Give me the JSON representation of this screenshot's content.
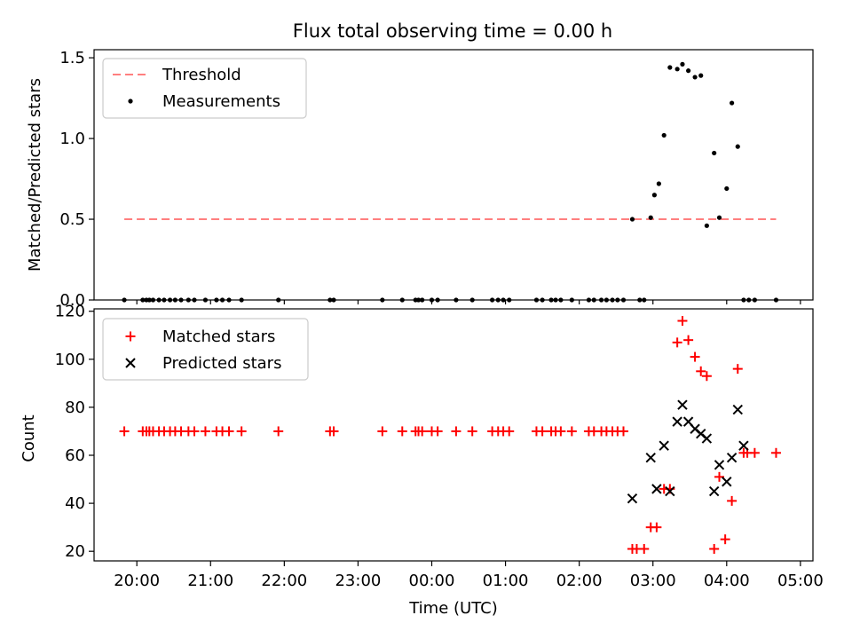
{
  "title": "Flux total observing time = 0.00 h",
  "colors": {
    "threshold": "#ff7f7f",
    "measurements": "#000000",
    "matched": "#ff0000",
    "predicted": "#000000"
  },
  "chart_data": [
    {
      "type": "scatter",
      "ylabel": "Matched/Predicted stars",
      "xlim": [
        19.42,
        29.17
      ],
      "ylim": [
        0,
        1.55
      ],
      "yticks": [
        0.0,
        0.5,
        1.0,
        1.5
      ],
      "ytick_labels": [
        "0.0",
        "0.5",
        "1.0",
        "1.5"
      ],
      "legend_position": "upper left",
      "threshold": {
        "name": "Threshold",
        "value": 0.5,
        "x": [
          19.83,
          28.67
        ]
      },
      "series": [
        {
          "name": "Measurements",
          "x": [
            19.83,
            20.08,
            20.13,
            20.17,
            20.22,
            20.3,
            20.37,
            20.45,
            20.52,
            20.6,
            20.7,
            20.78,
            20.93,
            21.08,
            21.16,
            21.25,
            21.42,
            21.92,
            22.62,
            22.67,
            23.33,
            23.6,
            23.78,
            23.82,
            23.87,
            24.0,
            24.08,
            24.33,
            24.55,
            24.82,
            24.9,
            24.97,
            25.05,
            25.42,
            25.5,
            25.62,
            25.68,
            25.75,
            25.9,
            26.13,
            26.2,
            26.3,
            26.37,
            26.45,
            26.52,
            26.6,
            26.72,
            26.82,
            26.88,
            26.97,
            27.02,
            27.08,
            27.15,
            27.23,
            27.33,
            27.4,
            27.48,
            27.57,
            27.65,
            27.73,
            27.83,
            27.9,
            28.0,
            28.07,
            28.15,
            28.23,
            28.3,
            28.38,
            28.67
          ],
          "y": [
            0,
            0,
            0,
            0,
            0,
            0,
            0,
            0,
            0,
            0,
            0,
            0,
            0,
            0,
            0,
            0,
            0,
            0,
            0,
            0,
            0,
            0,
            0,
            0,
            0,
            0,
            0,
            0,
            0,
            0,
            0,
            0,
            0,
            0,
            0,
            0,
            0,
            0,
            0,
            0,
            0,
            0,
            0,
            0,
            0,
            0,
            0.5,
            0,
            0,
            0.51,
            0.65,
            0.72,
            1.02,
            1.44,
            1.43,
            1.46,
            1.42,
            1.38,
            1.39,
            0.46,
            0.91,
            0.51,
            0.69,
            1.22,
            0.95,
            0,
            0,
            0,
            0
          ]
        }
      ]
    },
    {
      "type": "scatter",
      "xlabel": "Time (UTC)",
      "ylabel": "Count",
      "xlim": [
        19.42,
        29.17
      ],
      "ylim": [
        16,
        121
      ],
      "yticks": [
        20,
        40,
        60,
        80,
        100,
        120
      ],
      "ytick_labels": [
        "20",
        "40",
        "60",
        "80",
        "100",
        "120"
      ],
      "xticks": [
        20,
        21,
        22,
        23,
        24,
        25,
        26,
        27,
        28,
        29
      ],
      "xtick_labels": [
        "20:00",
        "21:00",
        "22:00",
        "23:00",
        "00:00",
        "01:00",
        "02:00",
        "03:00",
        "04:00",
        "05:00"
      ],
      "legend_position": "upper left",
      "series": [
        {
          "name": "Matched stars",
          "marker": "plus",
          "x": [
            19.83,
            20.08,
            20.13,
            20.17,
            20.22,
            20.3,
            20.37,
            20.45,
            20.52,
            20.6,
            20.7,
            20.78,
            20.93,
            21.08,
            21.16,
            21.25,
            21.42,
            21.92,
            22.62,
            22.67,
            23.33,
            23.6,
            23.78,
            23.82,
            23.87,
            24.0,
            24.08,
            24.33,
            24.55,
            24.82,
            24.9,
            24.97,
            25.05,
            25.42,
            25.5,
            25.62,
            25.68,
            25.75,
            25.9,
            26.13,
            26.2,
            26.3,
            26.37,
            26.45,
            26.52,
            26.6,
            26.72,
            26.78,
            26.88,
            26.97,
            27.05,
            27.15,
            27.23,
            27.33,
            27.4,
            27.48,
            27.57,
            27.65,
            27.73,
            27.83,
            27.9,
            27.98,
            28.07,
            28.15,
            28.23,
            28.28,
            28.38,
            28.67
          ],
          "y": [
            70,
            70,
            70,
            70,
            70,
            70,
            70,
            70,
            70,
            70,
            70,
            70,
            70,
            70,
            70,
            70,
            70,
            70,
            70,
            70,
            70,
            70,
            70,
            70,
            70,
            70,
            70,
            70,
            70,
            70,
            70,
            70,
            70,
            70,
            70,
            70,
            70,
            70,
            70,
            70,
            70,
            70,
            70,
            70,
            70,
            70,
            21,
            21,
            21,
            30,
            30,
            46,
            46,
            107,
            116,
            108,
            101,
            95,
            93,
            21,
            51,
            25,
            41,
            96,
            61,
            61,
            61,
            61
          ]
        },
        {
          "name": "Predicted stars",
          "marker": "x",
          "x": [
            26.72,
            26.97,
            27.05,
            27.15,
            27.23,
            27.33,
            27.4,
            27.48,
            27.57,
            27.65,
            27.73,
            27.83,
            27.9,
            28.0,
            28.07,
            28.15,
            28.23
          ],
          "y": [
            42,
            59,
            46,
            64,
            45,
            74,
            81,
            74,
            71,
            69,
            67,
            45,
            56,
            49,
            59,
            79,
            64
          ]
        }
      ]
    }
  ]
}
